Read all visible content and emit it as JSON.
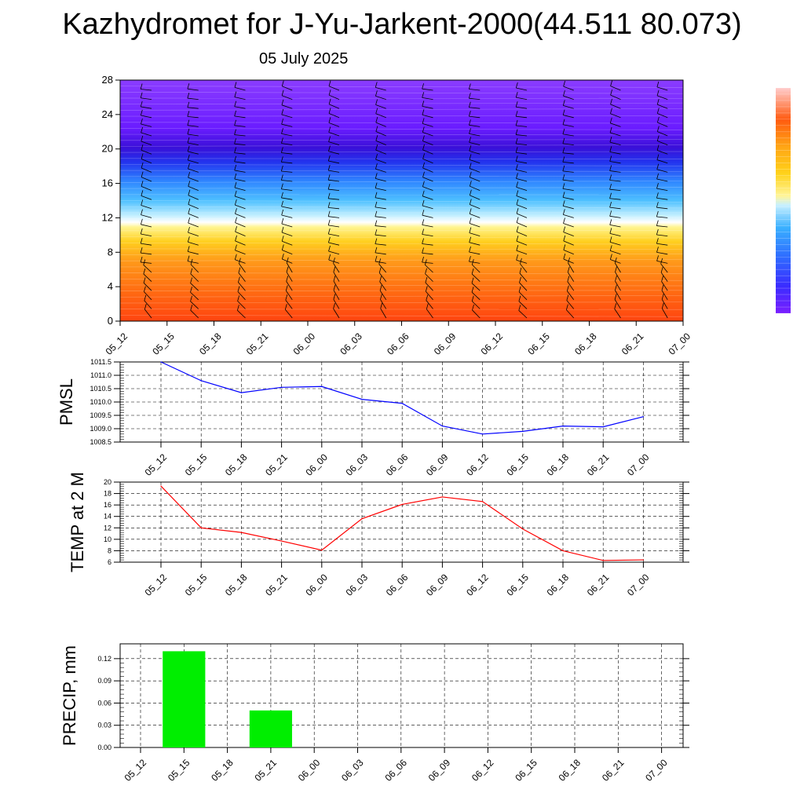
{
  "header": {
    "title": "Kazhydromet for J-Yu-Jarkent-2000(44.511 80.073)",
    "date": "05 July 2025"
  },
  "chart_data": [
    {
      "type": "heatmap",
      "name": "vertical-profile",
      "categories": [
        "05_12",
        "05_15",
        "05_18",
        "05_21",
        "06_00",
        "06_03",
        "06_06",
        "06_09",
        "06_12",
        "06_15",
        "06_18",
        "06_21",
        "07_00"
      ],
      "ylim": [
        0,
        28
      ],
      "yticks": [
        "0",
        "4",
        "8",
        "12",
        "16",
        "20",
        "24",
        "28"
      ],
      "colormap": [
        "#7a1fff",
        "#3a2cff",
        "#2f6cff",
        "#3ab0ff",
        "#9ee0ff",
        "#ffffff",
        "#fff59a",
        "#ffd21a",
        "#ffa515",
        "#ff7a0f",
        "#ff4d0c"
      ],
      "wind_barbs": true
    },
    {
      "type": "line",
      "name": "pmsl",
      "ylabel": "PMSL",
      "categories": [
        "05_12",
        "05_15",
        "05_18",
        "05_21",
        "06_00",
        "06_03",
        "06_06",
        "06_09",
        "06_12",
        "06_15",
        "06_18",
        "06_21",
        "07_00"
      ],
      "yticks": [
        "1008.5",
        "1009.0",
        "1009.5",
        "1010.0",
        "1010.5",
        "1011.0",
        "1011.5"
      ],
      "ylim": [
        1008.5,
        1011.5
      ],
      "color": "#0000ff",
      "series": [
        {
          "values": [
            1011.5,
            1010.8,
            1010.35,
            1010.55,
            1010.58,
            1010.1,
            1009.95,
            1009.1,
            1008.8,
            1008.9,
            1009.1,
            1009.07,
            1009.45
          ]
        }
      ]
    },
    {
      "type": "line",
      "name": "temp",
      "ylabel": "TEMP at 2 M",
      "categories": [
        "05_12",
        "05_15",
        "05_18",
        "05_21",
        "06_00",
        "06_03",
        "06_06",
        "06_09",
        "06_12",
        "06_15",
        "06_18",
        "06_21",
        "07_00"
      ],
      "yticks": [
        "6",
        "8",
        "10",
        "12",
        "14",
        "16",
        "18",
        "20"
      ],
      "ylim": [
        6,
        20
      ],
      "color": "#ff0000",
      "series": [
        {
          "values": [
            19.3,
            12.0,
            11.2,
            9.7,
            8.1,
            13.6,
            16.1,
            17.4,
            16.6,
            11.8,
            8.0,
            6.3,
            6.4
          ]
        }
      ]
    },
    {
      "type": "bar",
      "name": "precip",
      "ylabel": "PRECIP, mm",
      "categories": [
        "05_12",
        "05_15",
        "05_18",
        "05_21",
        "06_00",
        "06_03",
        "06_06",
        "06_09",
        "06_12",
        "06_15",
        "06_18",
        "06_21",
        "07_00"
      ],
      "yticks": [
        "0.00",
        "0.03",
        "0.06",
        "0.09",
        "0.12"
      ],
      "ylim": [
        0,
        0.14
      ],
      "color": "#00ee00",
      "series": [
        {
          "values": [
            0,
            0.13,
            0,
            0.05,
            0,
            0,
            0,
            0,
            0,
            0,
            0,
            0,
            0
          ]
        }
      ]
    }
  ]
}
